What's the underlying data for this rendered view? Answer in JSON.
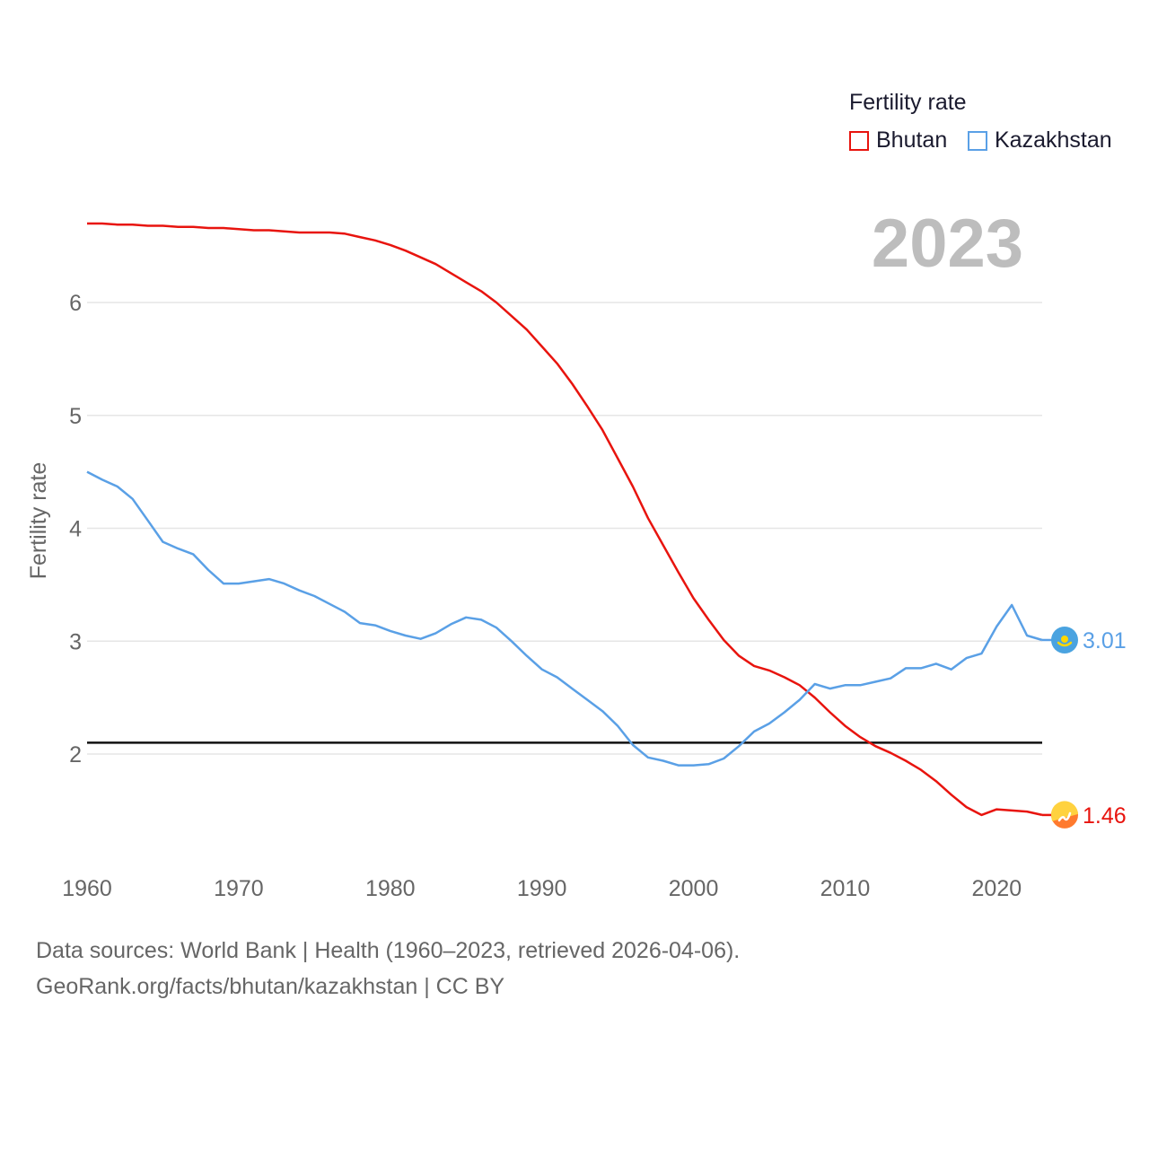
{
  "legend": {
    "title": "Fertility rate",
    "items": [
      {
        "label": "Bhutan",
        "color": "#e8140e"
      },
      {
        "label": "Kazakhstan",
        "color": "#5aa0e6"
      }
    ]
  },
  "year_label": "2023",
  "source": {
    "line1": "Data sources: World Bank | Health (1960–2023, retrieved 2026-04-06).",
    "line2": "GeoRank.org/facts/bhutan/kazakhstan | CC BY"
  },
  "chart_data": {
    "type": "line",
    "title": "",
    "xlabel": "",
    "ylabel": "Fertility rate",
    "xlim": [
      1960,
      2023
    ],
    "ylim": [
      1.0,
      7.0
    ],
    "x_ticks": [
      "1960",
      "1970",
      "1980",
      "1990",
      "2000",
      "2010",
      "2020"
    ],
    "y_ticks": [
      "2",
      "3",
      "4",
      "5",
      "6"
    ],
    "reference_line": {
      "y": 2.1,
      "color": "#111111"
    },
    "series": [
      {
        "name": "Bhutan",
        "color": "#e8140e",
        "end_label": "1.46",
        "x": [
          1960,
          1961,
          1962,
          1963,
          1964,
          1965,
          1966,
          1967,
          1968,
          1969,
          1970,
          1971,
          1972,
          1973,
          1974,
          1975,
          1976,
          1977,
          1978,
          1979,
          1980,
          1981,
          1982,
          1983,
          1984,
          1985,
          1986,
          1987,
          1988,
          1989,
          1990,
          1991,
          1992,
          1993,
          1994,
          1995,
          1996,
          1997,
          1998,
          1999,
          2000,
          2001,
          2002,
          2003,
          2004,
          2005,
          2006,
          2007,
          2008,
          2009,
          2010,
          2011,
          2012,
          2013,
          2014,
          2015,
          2016,
          2017,
          2018,
          2019,
          2020,
          2021,
          2022,
          2023
        ],
        "values": [
          6.7,
          6.7,
          6.69,
          6.69,
          6.68,
          6.68,
          6.67,
          6.67,
          6.66,
          6.66,
          6.65,
          6.64,
          6.64,
          6.63,
          6.62,
          6.62,
          6.62,
          6.61,
          6.58,
          6.55,
          6.51,
          6.46,
          6.4,
          6.34,
          6.26,
          6.18,
          6.1,
          6.0,
          5.88,
          5.76,
          5.61,
          5.46,
          5.28,
          5.08,
          4.87,
          4.62,
          4.37,
          4.09,
          3.85,
          3.61,
          3.38,
          3.19,
          3.01,
          2.87,
          2.78,
          2.74,
          2.68,
          2.61,
          2.5,
          2.37,
          2.25,
          2.15,
          2.07,
          2.01,
          1.94,
          1.86,
          1.76,
          1.64,
          1.53,
          1.46,
          1.51,
          1.5,
          1.49,
          1.46
        ]
      },
      {
        "name": "Kazakhstan",
        "color": "#5aa0e6",
        "end_label": "3.01",
        "x": [
          1960,
          1961,
          1962,
          1963,
          1964,
          1965,
          1966,
          1967,
          1968,
          1969,
          1970,
          1971,
          1972,
          1973,
          1974,
          1975,
          1976,
          1977,
          1978,
          1979,
          1980,
          1981,
          1982,
          1983,
          1984,
          1985,
          1986,
          1987,
          1988,
          1989,
          1990,
          1991,
          1992,
          1993,
          1994,
          1995,
          1996,
          1997,
          1998,
          1999,
          2000,
          2001,
          2002,
          2003,
          2004,
          2005,
          2006,
          2007,
          2008,
          2009,
          2010,
          2011,
          2012,
          2013,
          2014,
          2015,
          2016,
          2017,
          2018,
          2019,
          2020,
          2021,
          2022,
          2023
        ],
        "values": [
          4.5,
          4.43,
          4.37,
          4.26,
          4.07,
          3.88,
          3.82,
          3.77,
          3.63,
          3.51,
          3.51,
          3.53,
          3.55,
          3.51,
          3.45,
          3.4,
          3.33,
          3.26,
          3.16,
          3.14,
          3.09,
          3.05,
          3.02,
          3.07,
          3.15,
          3.21,
          3.19,
          3.12,
          3.0,
          2.87,
          2.75,
          2.68,
          2.58,
          2.48,
          2.38,
          2.25,
          2.08,
          1.97,
          1.94,
          1.9,
          1.9,
          1.91,
          1.96,
          2.07,
          2.2,
          2.27,
          2.37,
          2.48,
          2.62,
          2.58,
          2.61,
          2.61,
          2.64,
          2.67,
          2.76,
          2.76,
          2.8,
          2.75,
          2.85,
          2.89,
          3.13,
          3.32,
          3.05,
          3.01
        ]
      }
    ]
  }
}
